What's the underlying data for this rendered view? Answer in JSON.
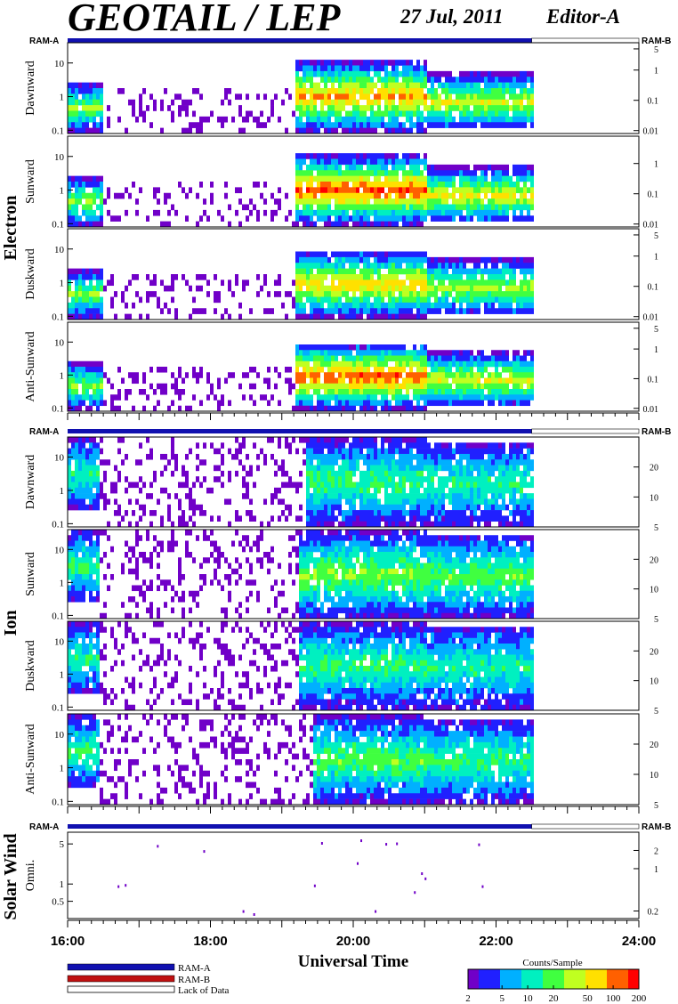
{
  "header": {
    "title": "GEOTAIL / LEP",
    "date": "27 Jul, 2011",
    "editor": "Editor-A"
  },
  "ram_labels": {
    "left": "RAM-A",
    "right": "RAM-B"
  },
  "x_axis": {
    "label": "Universal Time",
    "range_hours": [
      16,
      24
    ],
    "tick_labels": [
      "16:00",
      "18:00",
      "20:00",
      "22:00",
      "24:00"
    ],
    "tick_hours": [
      16,
      18,
      20,
      22,
      24
    ],
    "data_end_hour": 22.5
  },
  "colors": {
    "ram_a": "#1010b0",
    "ram_b": "#c01010",
    "lack_of_data": "#ffffff",
    "colormap": [
      "#7000c8",
      "#2020ff",
      "#00b0ff",
      "#00f0c0",
      "#40ff40",
      "#c0ff20",
      "#ffe000",
      "#ff6000",
      "#ff0000"
    ]
  },
  "legend": {
    "ram_a": "RAM-A",
    "ram_b": "RAM-B",
    "lack": "Lack of Data"
  },
  "colorbar": {
    "title": "Counts/Sample",
    "tick_labels": [
      "2",
      "5",
      "10",
      "20",
      "50",
      "100",
      "200"
    ],
    "range": [
      2,
      200
    ],
    "scale": "log"
  },
  "chart_data": [
    {
      "type": "heatmap",
      "group": "Electron",
      "ylabel": "Dawnward",
      "left_ticks": [
        "10",
        "1",
        "0.1"
      ],
      "left_values": [
        10,
        1,
        0.1
      ],
      "ylim": [
        0.08,
        40
      ],
      "yscale": "log",
      "right_ticks": [
        "5",
        "1",
        "0.1",
        "0.01"
      ],
      "right_values": [
        5,
        1,
        0.1,
        0.01
      ],
      "right_lim": [
        0.008,
        8
      ],
      "activity": [
        {
          "start": 16.0,
          "end": 16.45,
          "low": 0.1,
          "high": 2,
          "level": 0.5
        },
        {
          "start": 16.45,
          "end": 19.15,
          "low": 0.1,
          "high": 1.5,
          "level": 0.05
        },
        {
          "start": 19.15,
          "end": 21.0,
          "low": 0.1,
          "high": 10,
          "level": 0.75
        },
        {
          "start": 21.0,
          "end": 22.5,
          "low": 0.12,
          "high": 4,
          "level": 0.6
        }
      ]
    },
    {
      "type": "heatmap",
      "group": "Electron",
      "ylabel": "Sunward",
      "left_ticks": [
        "10",
        "1",
        "0.1"
      ],
      "left_values": [
        10,
        1,
        0.1
      ],
      "ylim": [
        0.08,
        40
      ],
      "yscale": "log",
      "right_ticks": [
        "1",
        "0.1",
        "0.01"
      ],
      "right_values": [
        1,
        0.1,
        0.01
      ],
      "right_lim": [
        0.008,
        8
      ],
      "activity": [
        {
          "start": 16.0,
          "end": 16.45,
          "low": 0.1,
          "high": 2,
          "level": 0.5
        },
        {
          "start": 16.45,
          "end": 19.15,
          "low": 0.1,
          "high": 1.5,
          "level": 0.05
        },
        {
          "start": 19.15,
          "end": 21.0,
          "low": 0.1,
          "high": 10,
          "level": 0.85
        },
        {
          "start": 21.0,
          "end": 22.5,
          "low": 0.12,
          "high": 4,
          "level": 0.65
        }
      ]
    },
    {
      "type": "heatmap",
      "group": "Electron",
      "ylabel": "Duskward",
      "left_ticks": [
        "10",
        "1",
        "0.1"
      ],
      "left_values": [
        10,
        1,
        0.1
      ],
      "ylim": [
        0.08,
        40
      ],
      "yscale": "log",
      "right_ticks": [
        "5",
        "1",
        "0.1",
        "0.01"
      ],
      "right_values": [
        5,
        1,
        0.1,
        0.01
      ],
      "right_lim": [
        0.008,
        8
      ],
      "activity": [
        {
          "start": 16.0,
          "end": 16.45,
          "low": 0.1,
          "high": 2,
          "level": 0.5
        },
        {
          "start": 16.45,
          "end": 19.15,
          "low": 0.1,
          "high": 1.5,
          "level": 0.05
        },
        {
          "start": 19.15,
          "end": 21.0,
          "low": 0.1,
          "high": 8,
          "level": 0.7
        },
        {
          "start": 21.0,
          "end": 22.5,
          "low": 0.12,
          "high": 4,
          "level": 0.55
        }
      ]
    },
    {
      "type": "heatmap",
      "group": "Electron",
      "ylabel": "Anti-Sunward",
      "left_ticks": [
        "10",
        "1",
        "0.1"
      ],
      "left_values": [
        10,
        1,
        0.1
      ],
      "ylim": [
        0.08,
        40
      ],
      "yscale": "log",
      "right_ticks": [
        "5",
        "1",
        "0.1",
        "0.01"
      ],
      "right_values": [
        5,
        1,
        0.1,
        0.01
      ],
      "right_lim": [
        0.008,
        8
      ],
      "activity": [
        {
          "start": 16.0,
          "end": 16.45,
          "low": 0.1,
          "high": 2,
          "level": 0.5
        },
        {
          "start": 16.45,
          "end": 19.15,
          "low": 0.1,
          "high": 1.5,
          "level": 0.05
        },
        {
          "start": 19.15,
          "end": 21.0,
          "low": 0.1,
          "high": 8,
          "level": 0.85
        },
        {
          "start": 21.0,
          "end": 22.5,
          "low": 0.12,
          "high": 4,
          "level": 0.6
        }
      ]
    },
    {
      "type": "heatmap",
      "group": "Ion",
      "ylabel": "Dawnward",
      "left_ticks": [
        "10",
        "1",
        "0.1"
      ],
      "left_values": [
        10,
        1,
        0.1
      ],
      "ylim": [
        0.08,
        40
      ],
      "yscale": "log",
      "right_ticks": [
        "20",
        "10",
        "5"
      ],
      "right_values": [
        20,
        10,
        5
      ],
      "right_lim": [
        5,
        40
      ],
      "activity": [
        {
          "start": 16.0,
          "end": 16.4,
          "low": 0.3,
          "high": 30,
          "level": 0.35
        },
        {
          "start": 16.4,
          "end": 19.3,
          "low": 0.1,
          "high": 40,
          "level": 0.02
        },
        {
          "start": 19.3,
          "end": 21.0,
          "low": 0.1,
          "high": 30,
          "level": 0.4
        },
        {
          "start": 21.0,
          "end": 22.5,
          "low": 0.1,
          "high": 25,
          "level": 0.35
        }
      ]
    },
    {
      "type": "heatmap",
      "group": "Ion",
      "ylabel": "Sunward",
      "left_ticks": [
        "10",
        "1",
        "0.1"
      ],
      "left_values": [
        10,
        1,
        0.1
      ],
      "ylim": [
        0.08,
        40
      ],
      "yscale": "log",
      "right_ticks": [
        "20",
        "10",
        "5"
      ],
      "right_values": [
        20,
        10,
        5
      ],
      "right_lim": [
        5,
        40
      ],
      "activity": [
        {
          "start": 16.0,
          "end": 16.4,
          "low": 0.3,
          "high": 30,
          "level": 0.4
        },
        {
          "start": 16.4,
          "end": 19.2,
          "low": 0.1,
          "high": 40,
          "level": 0.02
        },
        {
          "start": 19.2,
          "end": 21.0,
          "low": 0.1,
          "high": 30,
          "level": 0.5
        },
        {
          "start": 21.0,
          "end": 22.5,
          "low": 0.1,
          "high": 25,
          "level": 0.45
        }
      ]
    },
    {
      "type": "heatmap",
      "group": "Ion",
      "ylabel": "Duskward",
      "left_ticks": [
        "10",
        "1",
        "0.1"
      ],
      "left_values": [
        10,
        1,
        0.1
      ],
      "ylim": [
        0.08,
        40
      ],
      "yscale": "log",
      "right_ticks": [
        "20",
        "10",
        "5"
      ],
      "right_values": [
        20,
        10,
        5
      ],
      "right_lim": [
        5,
        40
      ],
      "activity": [
        {
          "start": 16.0,
          "end": 16.4,
          "low": 0.3,
          "high": 30,
          "level": 0.35
        },
        {
          "start": 16.4,
          "end": 19.2,
          "low": 0.1,
          "high": 40,
          "level": 0.02
        },
        {
          "start": 19.2,
          "end": 21.0,
          "low": 0.1,
          "high": 30,
          "level": 0.4
        },
        {
          "start": 21.0,
          "end": 22.5,
          "low": 0.1,
          "high": 25,
          "level": 0.35
        }
      ]
    },
    {
      "type": "heatmap",
      "group": "Ion",
      "ylabel": "Anti-Sunward",
      "left_ticks": [
        "10",
        "1",
        "0.1"
      ],
      "left_values": [
        10,
        1,
        0.1
      ],
      "ylim": [
        0.08,
        40
      ],
      "yscale": "log",
      "right_ticks": [
        "20",
        "10",
        "5"
      ],
      "right_values": [
        20,
        10,
        5
      ],
      "right_lim": [
        5,
        40
      ],
      "activity": [
        {
          "start": 16.0,
          "end": 16.4,
          "low": 0.3,
          "high": 30,
          "level": 0.4
        },
        {
          "start": 16.4,
          "end": 19.4,
          "low": 0.1,
          "high": 40,
          "level": 0.02
        },
        {
          "start": 19.4,
          "end": 21.0,
          "low": 0.1,
          "high": 30,
          "level": 0.45
        },
        {
          "start": 21.0,
          "end": 22.5,
          "low": 0.1,
          "high": 25,
          "level": 0.4
        }
      ]
    },
    {
      "type": "scatter",
      "group": "Solar Wind",
      "ylabel": "Omni.",
      "left_ticks": [
        "5",
        "1",
        "0.5"
      ],
      "left_values": [
        5,
        1,
        0.5
      ],
      "ylim": [
        0.25,
        8
      ],
      "yscale": "log",
      "right_ticks": [
        "2",
        "1",
        "0.2"
      ],
      "right_values": [
        2,
        1,
        0.2
      ],
      "right_lim": [
        0.15,
        4
      ],
      "points": [
        {
          "x": 16.7,
          "y": 0.95
        },
        {
          "x": 16.8,
          "y": 1.0
        },
        {
          "x": 17.25,
          "y": 4.8
        },
        {
          "x": 17.9,
          "y": 3.9
        },
        {
          "x": 18.45,
          "y": 0.35
        },
        {
          "x": 18.6,
          "y": 0.31
        },
        {
          "x": 19.55,
          "y": 5.4
        },
        {
          "x": 19.45,
          "y": 0.98
        },
        {
          "x": 20.05,
          "y": 2.4
        },
        {
          "x": 20.1,
          "y": 6.0
        },
        {
          "x": 20.3,
          "y": 0.35
        },
        {
          "x": 20.45,
          "y": 5.2
        },
        {
          "x": 20.6,
          "y": 5.3
        },
        {
          "x": 20.95,
          "y": 1.6
        },
        {
          "x": 21.0,
          "y": 1.3
        },
        {
          "x": 20.85,
          "y": 0.75
        },
        {
          "x": 21.75,
          "y": 5.1
        },
        {
          "x": 21.8,
          "y": 0.95
        }
      ]
    }
  ],
  "groups": {
    "electron": "Electron",
    "ion": "Ion",
    "solar_wind": "Solar Wind"
  }
}
